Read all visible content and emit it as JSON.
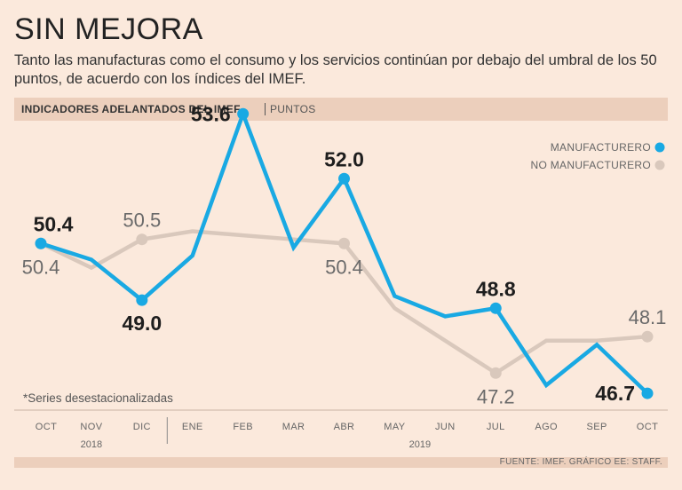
{
  "title": "SIN MEJORA",
  "subtitle": "Tanto las manufacturas como el consumo y los servicios continúan por debajo del umbral de los 50 puntos, de acuerdo con los índices del IMEF.",
  "header": {
    "label": "INDICADORES ADELANTADOS DEL IMEF",
    "units": "PUNTOS"
  },
  "note": "*Series desestacionalizadas",
  "source": "FUENTE: IMEF. GRÁFICO EE: STAFF.",
  "colors": {
    "manufacturero": "#19a9e3",
    "no_manufacturero": "#d9c8bc"
  },
  "chart_data": {
    "type": "line",
    "title": "INDICADORES ADELANTADOS DEL IMEF",
    "ylabel": "PUNTOS",
    "categories": [
      "OCT",
      "NOV",
      "DIC",
      "ENE",
      "FEB",
      "MAR",
      "ABR",
      "MAY",
      "JUN",
      "JUL",
      "AGO",
      "SEP",
      "OCT"
    ],
    "years": [
      {
        "label": "2018",
        "from": 0,
        "to": 2
      },
      {
        "label": "2019",
        "from": 3,
        "to": 12
      }
    ],
    "ylim": [
      46.0,
      54.0
    ],
    "series": [
      {
        "name": "MANUFACTURERO",
        "color": "#19a9e3",
        "values": [
          50.4,
          50.0,
          49.0,
          50.1,
          53.6,
          50.3,
          52.0,
          49.1,
          48.6,
          48.8,
          46.9,
          47.9,
          46.7
        ],
        "labels": [
          {
            "index": 0,
            "text": "50.4",
            "pos": "above"
          },
          {
            "index": 2,
            "text": "49.0",
            "pos": "below"
          },
          {
            "index": 4,
            "text": "53.6",
            "pos": "left"
          },
          {
            "index": 6,
            "text": "52.0",
            "pos": "above"
          },
          {
            "index": 9,
            "text": "48.8",
            "pos": "above"
          },
          {
            "index": 12,
            "text": "46.7",
            "pos": "left"
          }
        ]
      },
      {
        "name": "NO MANUFACTURERO",
        "color": "#d9c8bc",
        "values": [
          50.4,
          49.8,
          50.5,
          50.7,
          50.6,
          50.5,
          50.4,
          48.8,
          48.0,
          47.2,
          48.0,
          48.0,
          48.1
        ],
        "labels": [
          {
            "index": 0,
            "text": "50.4",
            "pos": "below"
          },
          {
            "index": 2,
            "text": "50.5",
            "pos": "above"
          },
          {
            "index": 6,
            "text": "50.4",
            "pos": "below"
          },
          {
            "index": 9,
            "text": "47.2",
            "pos": "below"
          },
          {
            "index": 12,
            "text": "48.1",
            "pos": "above"
          }
        ]
      }
    ],
    "legend": "top-right"
  }
}
